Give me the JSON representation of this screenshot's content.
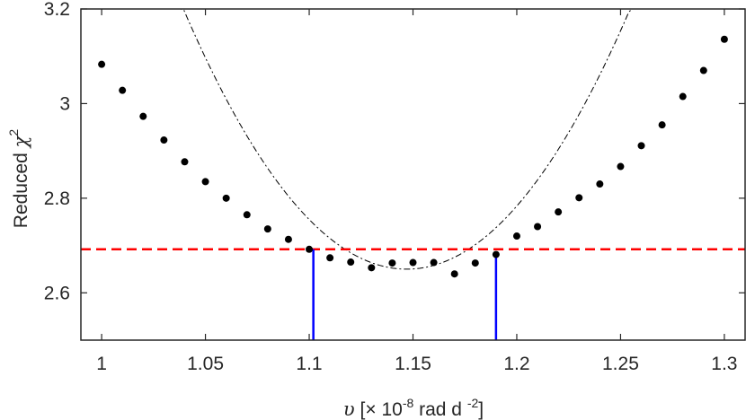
{
  "chart_data": {
    "type": "scatter",
    "xlabel": {
      "symbol": "υ",
      "pre": " [× 10",
      "exp": "-8",
      "mid": " rad d ",
      "exp2": "-2",
      "post": "]"
    },
    "ylabel": {
      "pre": "Reduced ",
      "symbol": "χ",
      "exp": "2"
    },
    "xlim": [
      0.99,
      1.31
    ],
    "ylim": [
      2.5,
      3.2
    ],
    "xticks": [
      "1",
      "1.05",
      "1.1",
      "1.15",
      "1.2",
      "1.25",
      "1.3"
    ],
    "xtick_values": [
      1.0,
      1.05,
      1.1,
      1.15,
      1.2,
      1.25,
      1.3
    ],
    "yticks": [
      "2.6",
      "2.8",
      "3",
      "3.2"
    ],
    "ytick_values": [
      2.6,
      2.8,
      3.0,
      3.2
    ],
    "grid": false,
    "series": [
      {
        "kind": "points",
        "color": "#000000",
        "x": [
          1.0,
          1.01,
          1.02,
          1.03,
          1.04,
          1.05,
          1.06,
          1.07,
          1.08,
          1.09,
          1.1,
          1.11,
          1.12,
          1.13,
          1.14,
          1.15,
          1.16,
          1.17,
          1.18,
          1.19,
          1.2,
          1.21,
          1.22,
          1.23,
          1.24,
          1.25,
          1.26,
          1.27,
          1.28,
          1.29,
          1.3
        ],
        "y": [
          3.083,
          3.028,
          2.973,
          2.923,
          2.877,
          2.835,
          2.8,
          2.765,
          2.735,
          2.713,
          2.692,
          2.674,
          2.665,
          2.653,
          2.663,
          2.664,
          2.664,
          2.64,
          2.663,
          2.681,
          2.72,
          2.74,
          2.771,
          2.801,
          2.83,
          2.867,
          2.911,
          2.955,
          3.015,
          3.07,
          3.136
        ]
      },
      {
        "kind": "fit",
        "style": "dash-dot",
        "color": "#000000",
        "vertex_x": 1.147,
        "vertex_y": 2.65,
        "a": 47.5
      },
      {
        "kind": "threshold",
        "style": "dashed",
        "color": "#ff0000",
        "y": 2.692
      },
      {
        "kind": "bounds",
        "color": "#0000ff",
        "x": [
          1.102,
          1.19
        ],
        "y_top": [
          2.692,
          2.682
        ]
      }
    ]
  }
}
